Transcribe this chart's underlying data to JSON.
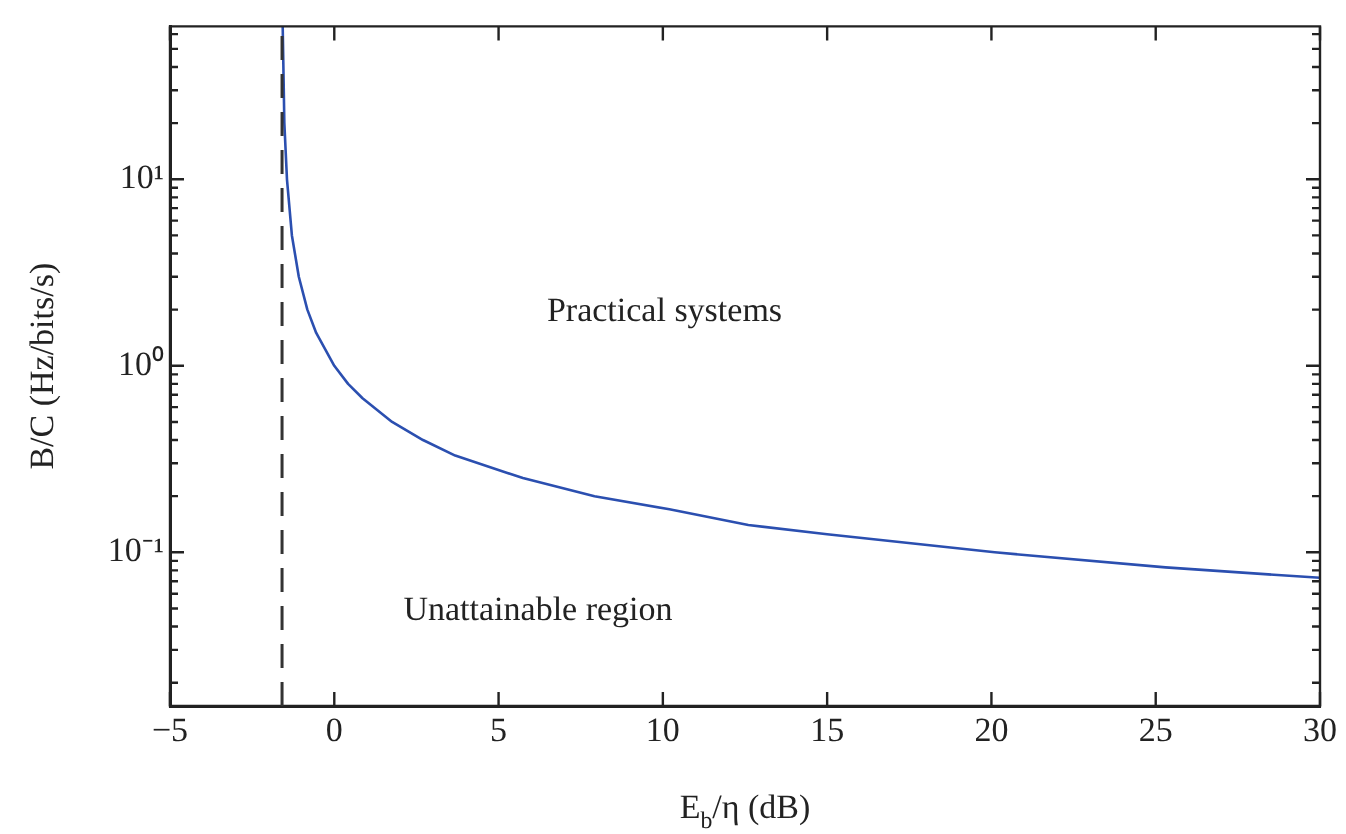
{
  "chart_data": {
    "type": "line",
    "xlabel": "E$_{b}$/η (dB)",
    "ylabel": "B/C (Hz/bits/s)",
    "log": "y",
    "grid": false,
    "legend": false,
    "marker": "none",
    "xlim": [
      -5,
      30
    ],
    "xticks": [
      {
        "value": -5,
        "label": "−5"
      },
      0,
      5,
      10,
      15,
      20,
      25,
      30
    ],
    "ylim": [
      0.015,
      66
    ],
    "yticks": [
      {
        "value": 0.02,
        "label": null
      },
      {
        "value": 0.03,
        "label": null
      },
      {
        "value": 0.04,
        "label": null
      },
      {
        "value": 0.05,
        "label": null
      },
      {
        "value": 0.06,
        "label": null
      },
      {
        "value": 0.07,
        "label": null
      },
      {
        "value": 0.08,
        "label": null
      },
      {
        "value": 0.09,
        "label": null
      },
      {
        "value": 0.1,
        "label": "10⁻¹"
      },
      {
        "value": 0.2,
        "label": null
      },
      {
        "value": 0.3,
        "label": null
      },
      {
        "value": 0.4,
        "label": null
      },
      {
        "value": 0.5,
        "label": null
      },
      {
        "value": 0.6,
        "label": null
      },
      {
        "value": 0.7,
        "label": null
      },
      {
        "value": 0.8,
        "label": null
      },
      {
        "value": 0.9,
        "label": null
      },
      {
        "value": 1,
        "label": "10⁰"
      },
      {
        "value": 2,
        "label": null
      },
      {
        "value": 3,
        "label": null
      },
      {
        "value": 4,
        "label": null
      },
      {
        "value": 5,
        "label": null
      },
      {
        "value": 6,
        "label": null
      },
      {
        "value": 7,
        "label": null
      },
      {
        "value": 8,
        "label": null
      },
      {
        "value": 9,
        "label": null
      },
      {
        "value": 10,
        "label": "10¹"
      },
      {
        "value": 20,
        "label": null
      },
      {
        "value": 30,
        "label": null
      },
      {
        "value": 40,
        "label": null
      },
      {
        "value": 50,
        "label": null
      },
      {
        "value": 60,
        "label": null
      }
    ],
    "series": [
      {
        "color": "#2b4fb0",
        "line_style": "solid",
        "x": [
          -1.57,
          -1.52,
          -1.44,
          -1.29,
          -1.08,
          -0.82,
          -0.55,
          0,
          0.42,
          0.86,
          1.76,
          2.7,
          3.68,
          5.74,
          7.92,
          10.2,
          12.6,
          15,
          20.1,
          25.3,
          30
        ],
        "values": [
          66,
          20,
          10,
          5,
          3,
          2,
          1.5,
          1,
          0.8,
          0.67,
          0.5,
          0.4,
          0.33,
          0.25,
          0.2,
          0.17,
          0.14,
          0.125,
          0.1,
          0.083,
          0.073
        ]
      }
    ],
    "ref_lines": [
      {
        "axis": "x",
        "value": -1.59,
        "color": "#333333",
        "line_style": "dashed"
      }
    ],
    "annotations": [
      "Practical systems",
      "Unattainable region"
    ]
  }
}
